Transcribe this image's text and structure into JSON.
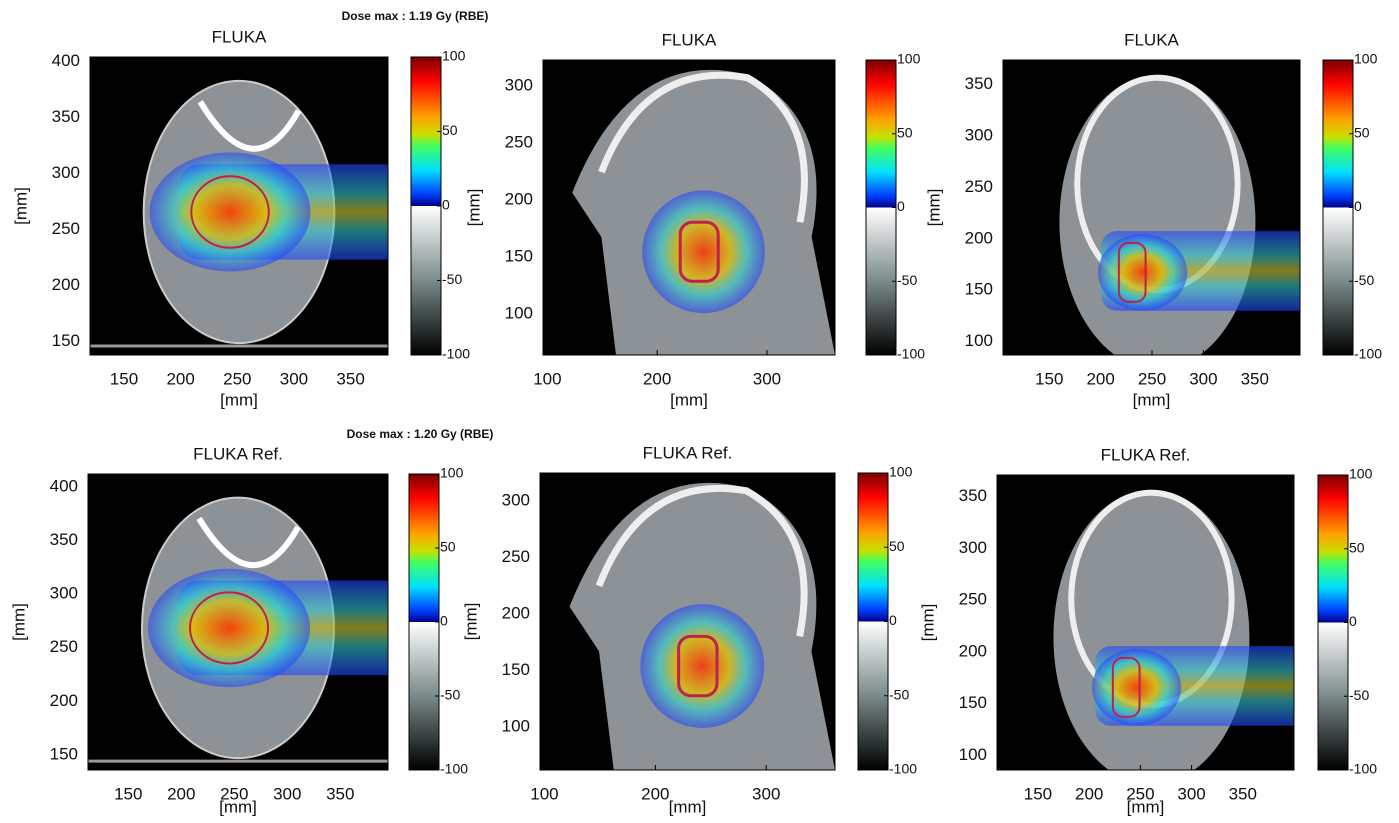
{
  "annotations": [
    "Dose max : 1.19 Gy (RBE)",
    "Dose max : 1.20 Gy (RBE)"
  ],
  "panels": [
    {
      "title": "FLUKA",
      "xlabel": "[mm]",
      "ylabel": "[mm]",
      "xlim": [
        120,
        383
      ],
      "ylim": [
        138,
        404
      ],
      "xticks": [
        150,
        200,
        250,
        300,
        350
      ],
      "yticks": [
        150,
        200,
        250,
        300,
        350,
        400
      ],
      "colorbar": {
        "clim": [
          -100,
          100
        ],
        "ticks": [
          -100,
          -50,
          0,
          50,
          100
        ]
      }
    },
    {
      "title": "FLUKA",
      "xlabel": "[mm]",
      "ylabel": "[mm]",
      "xlim": [
        96,
        362
      ],
      "ylim": [
        64,
        323
      ],
      "xticks": [
        100,
        200,
        300
      ],
      "yticks": [
        100,
        150,
        200,
        250,
        300
      ],
      "colorbar": {
        "clim": [
          -100,
          100
        ],
        "ticks": [
          -100,
          -50,
          0,
          50,
          100
        ]
      }
    },
    {
      "title": "FLUKA",
      "xlabel": "[mm]",
      "ylabel": "[mm]",
      "xlim": [
        105,
        394
      ],
      "ylim": [
        87,
        374
      ],
      "xticks": [
        150,
        200,
        250,
        300,
        350
      ],
      "yticks": [
        100,
        150,
        200,
        250,
        300,
        350
      ],
      "colorbar": {
        "clim": [
          -100,
          100
        ],
        "ticks": [
          -100,
          -50,
          0,
          50,
          100
        ]
      }
    },
    {
      "title": "FLUKA Ref.",
      "xlabel": "[mm]",
      "ylabel": "[mm]",
      "xlim": [
        112,
        395
      ],
      "ylim": [
        136,
        412
      ],
      "xticks": [
        150,
        200,
        250,
        300,
        350
      ],
      "yticks": [
        150,
        200,
        250,
        300,
        350,
        400
      ],
      "colorbar": {
        "clim": [
          -100,
          100
        ],
        "ticks": [
          -100,
          -50,
          0,
          50,
          100
        ]
      }
    },
    {
      "title": "FLUKA Ref.",
      "xlabel": "[mm]",
      "ylabel": "[mm]",
      "xlim": [
        96,
        362
      ],
      "ylim": [
        62,
        325
      ],
      "xticks": [
        100,
        200,
        300
      ],
      "yticks": [
        100,
        150,
        200,
        250,
        300
      ],
      "colorbar": {
        "clim": [
          -100,
          100
        ],
        "ticks": [
          -100,
          -50,
          0,
          50,
          100
        ]
      }
    },
    {
      "title": "FLUKA Ref.",
      "xlabel": "[mm]",
      "ylabel": "[mm]",
      "xlim": [
        110,
        400
      ],
      "ylim": [
        86,
        371
      ],
      "xticks": [
        150,
        200,
        250,
        300,
        350
      ],
      "yticks": [
        100,
        150,
        200,
        250,
        300,
        350
      ],
      "colorbar": {
        "clim": [
          -100,
          100
        ],
        "ticks": [
          -100,
          -50,
          0,
          50,
          100
        ]
      }
    }
  ]
}
